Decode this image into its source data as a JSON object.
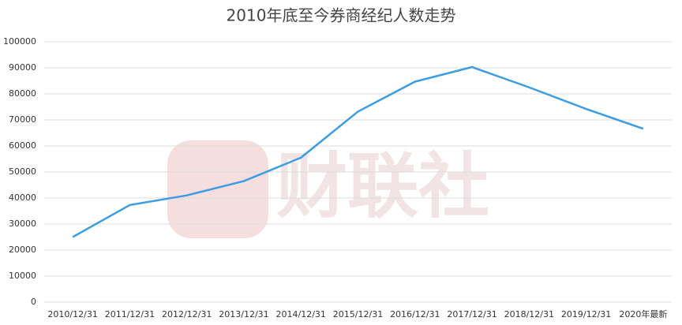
{
  "chart_data": {
    "type": "line",
    "title": "2010年底至今券商经纪人数走势",
    "watermark": "财联社",
    "categories": [
      "2010/12/31",
      "2011/12/31",
      "2012/12/31",
      "2013/12/31",
      "2014/12/31",
      "2015/12/31",
      "2016/12/31",
      "2017/12/31",
      "2018/12/31",
      "2019/12/31",
      "2020年最新"
    ],
    "values": [
      25000,
      37300,
      41000,
      46500,
      55500,
      73200,
      84700,
      90300,
      82500,
      74200,
      66600
    ],
    "color": "#3b9de2",
    "ylim": [
      0,
      100000
    ],
    "yticks": [
      0,
      10000,
      20000,
      30000,
      40000,
      50000,
      60000,
      70000,
      80000,
      90000,
      100000
    ],
    "grid": true
  }
}
